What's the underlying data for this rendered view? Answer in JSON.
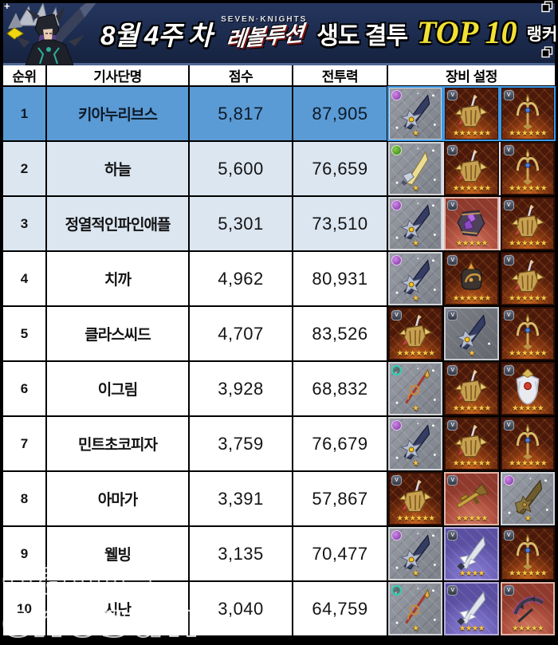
{
  "banner": {
    "week": "8월 4주 차",
    "brand_top": "SEVEN·KNIGHTS",
    "brand_logo": "레볼루션",
    "event": "생도 결투",
    "top": "TOP 10",
    "suffix": "랭커 순위"
  },
  "colors": {
    "banner_bg": "#1c2b4e",
    "banner_line": "#4d6795",
    "highlight_row": "#5b9bd5",
    "alt_row": "#dce6f1",
    "top10_yellow": "#f2e135",
    "grid_border": "#000000",
    "row1_tile_border": "#3d9be9",
    "star_gold": "#f5c64a",
    "ember_tile": "#8a3a12",
    "gray_tile": "#8b8f98",
    "rose_tile": "#b35342",
    "violet_tile": "#7166bd"
  },
  "watermark": {
    "line1": "game",
    "line2": "chosun"
  },
  "icons": {
    "window_restore": "window-restore-icon",
    "badge_shield_letter": "V"
  },
  "table": {
    "columns": [
      "순위",
      "기사단명",
      "점수",
      "전투력",
      "장비 설정"
    ],
    "rows": [
      {
        "rank": "1",
        "name": "키아누리브스",
        "score": "5,817",
        "power": "87,905",
        "highlight": true,
        "alt": false,
        "equip": [
          {
            "tile": "gray",
            "item": "sword-dark",
            "badge": "purple",
            "stars": 1
          },
          {
            "tile": "ember",
            "item": "gauntlet",
            "badge": "shield",
            "stars": 6
          },
          {
            "tile": "ember",
            "item": "trident",
            "badge": "shield",
            "stars": 6
          }
        ]
      },
      {
        "rank": "2",
        "name": "하늘",
        "score": "5,600",
        "power": "76,659",
        "highlight": false,
        "alt": true,
        "equip": [
          {
            "tile": "gray",
            "item": "sword-gold",
            "badge": "green",
            "stars": 1
          },
          {
            "tile": "ember",
            "item": "gauntlet",
            "badge": "shield",
            "stars": 6
          },
          {
            "tile": "ember",
            "item": "trident",
            "badge": "shield",
            "stars": 6
          }
        ]
      },
      {
        "rank": "3",
        "name": "정열적인파인애플",
        "score": "5,301",
        "power": "73,510",
        "highlight": false,
        "alt": true,
        "equip": [
          {
            "tile": "gray",
            "item": "sword-dark",
            "badge": "purple",
            "stars": 1
          },
          {
            "tile": "rose",
            "item": "armor-crystal",
            "badge": "shield",
            "stars": 5
          },
          {
            "tile": "ember",
            "item": "gauntlet",
            "badge": "shield",
            "stars": 6
          }
        ]
      },
      {
        "rank": "4",
        "name": "치까",
        "score": "4,962",
        "power": "80,931",
        "highlight": false,
        "alt": false,
        "equip": [
          {
            "tile": "gray",
            "item": "sword-dark",
            "badge": "purple",
            "stars": 1
          },
          {
            "tile": "ember",
            "item": "fist",
            "badge": "shield",
            "stars": 6
          },
          {
            "tile": "ember",
            "item": "gauntlet",
            "badge": "shield",
            "stars": 6
          }
        ]
      },
      {
        "rank": "5",
        "name": "클라스씨드",
        "score": "4,707",
        "power": "83,526",
        "highlight": false,
        "alt": false,
        "equip": [
          {
            "tile": "ember",
            "item": "gauntlet",
            "badge": "shield",
            "stars": 6
          },
          {
            "tile": "slate",
            "item": "sword-dark",
            "badge": "shield",
            "stars": 1
          },
          {
            "tile": "ember",
            "item": "trident",
            "badge": "shield",
            "stars": 6
          }
        ]
      },
      {
        "rank": "6",
        "name": "이그림",
        "score": "3,928",
        "power": "68,832",
        "highlight": false,
        "alt": false,
        "equip": [
          {
            "tile": "gray",
            "item": "spear-red",
            "badge": "teal",
            "stars": 1
          },
          {
            "tile": "ember",
            "item": "gauntlet",
            "badge": "shield",
            "stars": 6
          },
          {
            "tile": "ember",
            "item": "armor-white",
            "badge": "shield",
            "stars": 5
          }
        ]
      },
      {
        "rank": "7",
        "name": "민트초코피자",
        "score": "3,759",
        "power": "76,679",
        "highlight": false,
        "alt": false,
        "equip": [
          {
            "tile": "gray",
            "item": "sword-dark",
            "badge": "purple",
            "stars": 1
          },
          {
            "tile": "ember",
            "item": "gauntlet",
            "badge": "shield",
            "stars": 6
          },
          {
            "tile": "ember",
            "item": "trident",
            "badge": "shield",
            "stars": 6
          }
        ]
      },
      {
        "rank": "8",
        "name": "아마가",
        "score": "3,391",
        "power": "57,867",
        "highlight": false,
        "alt": false,
        "equip": [
          {
            "tile": "ember",
            "item": "gauntlet",
            "badge": "shield",
            "stars": 6
          },
          {
            "tile": "rose",
            "item": "gun",
            "badge": "shield",
            "stars": 5
          },
          {
            "tile": "gray",
            "item": "sword-rust",
            "badge": "purple",
            "stars": 1
          }
        ]
      },
      {
        "rank": "9",
        "name": "웰빙",
        "score": "3,135",
        "power": "70,477",
        "highlight": false,
        "alt": false,
        "equip": [
          {
            "tile": "gray",
            "item": "sword-dark",
            "badge": "purple",
            "stars": 1
          },
          {
            "tile": "violet",
            "item": "sword-silver",
            "badge": "shield",
            "stars": 4
          },
          {
            "tile": "ember",
            "item": "trident",
            "badge": "shield",
            "stars": 6
          }
        ]
      },
      {
        "rank": "10",
        "name": "시난",
        "score": "3,040",
        "power": "64,759",
        "highlight": false,
        "alt": false,
        "equip": [
          {
            "tile": "gray",
            "item": "spear-red",
            "badge": "teal",
            "stars": 1
          },
          {
            "tile": "violet",
            "item": "sword-silver",
            "badge": "shield",
            "stars": 4
          },
          {
            "tile": "rose",
            "item": "scythe",
            "badge": "shield",
            "stars": 5
          }
        ]
      }
    ]
  }
}
